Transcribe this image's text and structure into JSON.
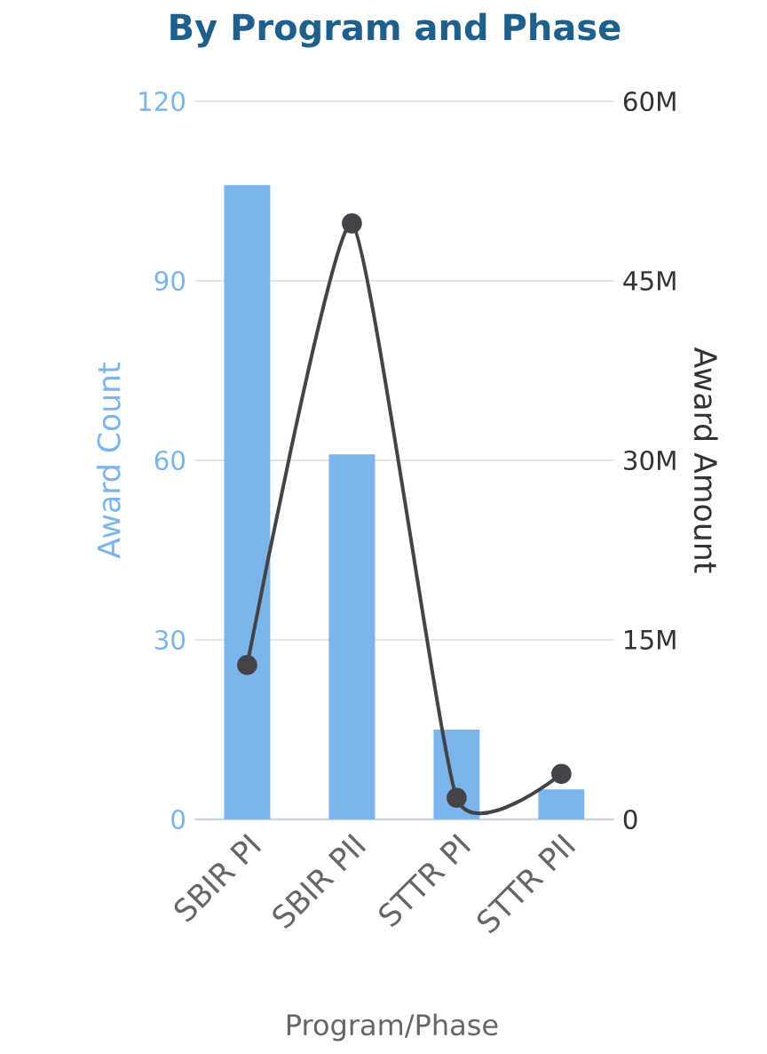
{
  "chart_data": {
    "type": "bar",
    "title": "By Program and Phase",
    "xlabel": "Program/Phase",
    "ylabel": "Award Count",
    "y2label": "Award Amount",
    "categories": [
      "SBIR PI",
      "SBIR PII",
      "STTR PI",
      "STTR PII"
    ],
    "series": [
      {
        "color": "#7cb5ec",
        "values": [
          106,
          61,
          15,
          5
        ]
      },
      {
        "type": "line",
        "axis": "y2",
        "color": "#434348",
        "marker": "circle",
        "values": [
          12900000,
          49800000,
          1800000,
          3800000
        ]
      }
    ],
    "ylim": [
      0,
      120
    ],
    "yticks": [
      0,
      30,
      60,
      90,
      120
    ],
    "y2lim": [
      0,
      60000000
    ],
    "y2ticks": [
      0,
      {
        "value": 15000000,
        "label": "15M"
      },
      {
        "value": 30000000,
        "label": "30M"
      },
      {
        "value": 45000000,
        "label": "45M"
      },
      {
        "value": 60000000,
        "label": "60M"
      }
    ],
    "grid": "y"
  }
}
